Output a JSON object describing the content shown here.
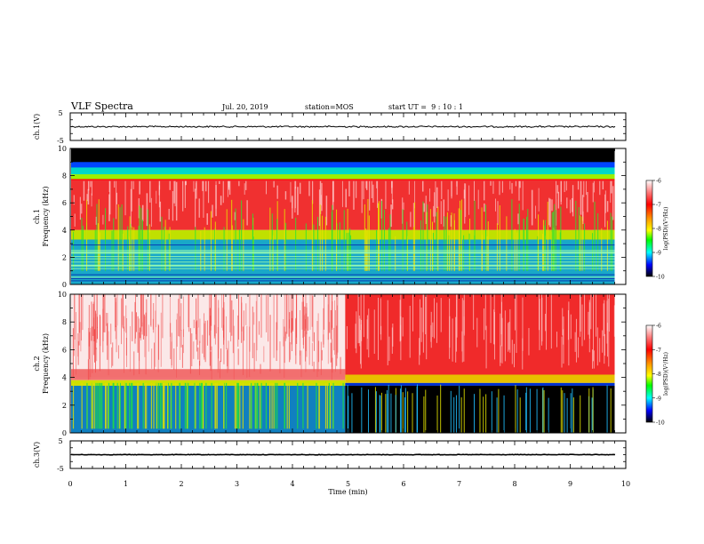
{
  "header": {
    "title": "VLF Spectra",
    "date": "Jul. 20, 2019",
    "station": "station=MOS",
    "start": "start UT =  9 : 10 : 1"
  },
  "chart_data": [
    {
      "type": "line",
      "panel": "ch1-waveform",
      "ylabel": "ch.1(V)",
      "ylim": [
        -5,
        5
      ],
      "yticks": [
        "5",
        "-5"
      ],
      "xlim": [
        0,
        10
      ],
      "series": [
        {
          "values_description_level": 0
        }
      ]
    },
    {
      "type": "heatmap",
      "panel": "ch1-spectrogram",
      "ylabel": "ch.1\nFrequency (kHz)",
      "ylabel_lines": [
        "ch.1",
        "Frequency (kHz)"
      ],
      "ylim": [
        0,
        10
      ],
      "yticks": [
        "0",
        "2",
        "4",
        "6",
        "8",
        "10"
      ],
      "xlim": [
        0,
        10
      ],
      "colorbar": {
        "label": "log(PSD)(V²/Hz)",
        "ticks": [
          "-6",
          "-7",
          "-8",
          "-9",
          "-10"
        ],
        "range": [
          -10,
          -6
        ]
      },
      "data_end_min": 9.8,
      "bands_khz": {
        "black_top": [
          9.0,
          10.0
        ],
        "cyan_green_edge": 8.7,
        "red_top": 8.0,
        "red_bottom": 4.0,
        "blue_cyan_below": 3.5
      }
    },
    {
      "type": "heatmap",
      "panel": "ch2-spectrogram",
      "ylabel": "ch.2\nFrequency (kHz)",
      "ylabel_lines": [
        "ch.2",
        "Frequency (kHz)"
      ],
      "ylim": [
        0,
        10
      ],
      "yticks": [
        "0",
        "2",
        "4",
        "6",
        "8",
        "10"
      ],
      "xlim": [
        0,
        10
      ],
      "colorbar": {
        "label": "log(PSD)(V²/Hz)",
        "ticks": [
          "-6",
          "-7",
          "-8",
          "-9",
          "-10"
        ],
        "range": [
          -10,
          -6
        ]
      },
      "data_end_min": 9.8,
      "change_at_min": 4.95,
      "bands_khz": {
        "sparse_red_before_change": [
          4.0,
          10.0
        ],
        "dense_red_after_change": [
          4.0,
          10.0
        ],
        "black_low_after_change": [
          0,
          3.4
        ]
      }
    },
    {
      "type": "line",
      "panel": "ch3-waveform",
      "ylabel": "ch.3(V)",
      "ylim": [
        -5,
        5
      ],
      "yticks": [
        "5",
        "-5"
      ],
      "xlim": [
        0,
        10
      ],
      "xlabel": "Time (min)",
      "xticks": [
        "0",
        "1",
        "2",
        "3",
        "4",
        "5",
        "6",
        "7",
        "8",
        "9",
        "10"
      ],
      "series": [
        {
          "values_description_level": 0
        }
      ]
    }
  ]
}
